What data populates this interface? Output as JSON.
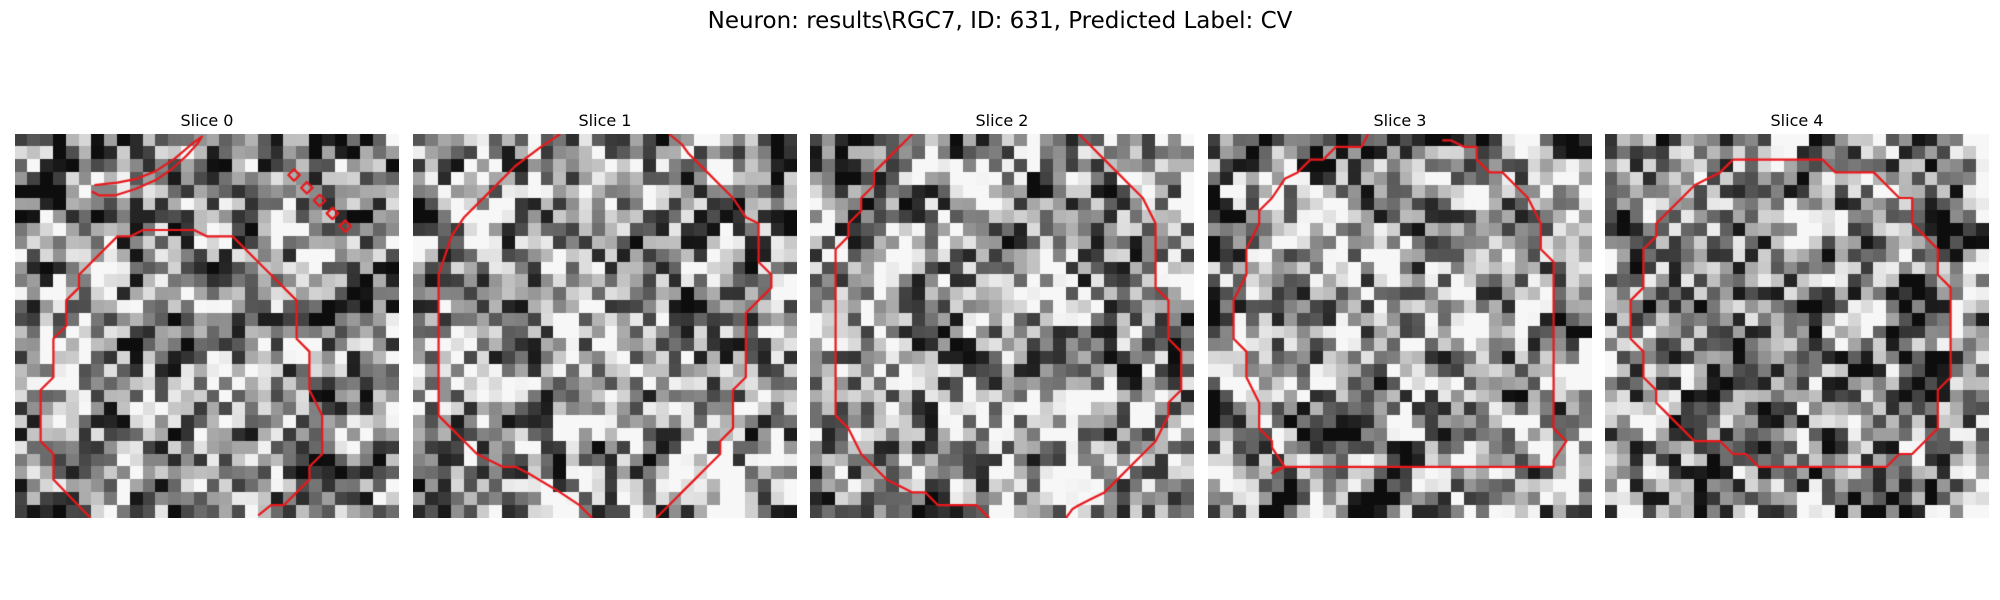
{
  "figure": {
    "title": "Neuron: results\\RGC7, ID: 631, Predicted Label: CV"
  },
  "slices": [
    {
      "title": "Slice 0",
      "seed": 11,
      "brightness": 0.52,
      "contours": [
        [
          [
            5.9,
            30
          ],
          [
            3.0,
            27
          ],
          [
            3.0,
            25
          ],
          [
            2.0,
            24
          ],
          [
            2.0,
            20
          ],
          [
            3.0,
            19
          ],
          [
            3.0,
            16
          ],
          [
            4.0,
            15
          ],
          [
            4.0,
            13
          ],
          [
            5.0,
            12
          ],
          [
            5.0,
            11
          ],
          [
            8.0,
            8
          ],
          [
            9.0,
            8
          ],
          [
            10,
            7.5
          ],
          [
            14,
            7.5
          ],
          [
            15,
            8
          ],
          [
            17,
            8
          ],
          [
            19,
            10
          ],
          [
            20,
            11
          ],
          [
            21,
            12
          ],
          [
            22,
            13
          ],
          [
            22,
            16
          ],
          [
            23,
            17
          ],
          [
            23,
            20
          ],
          [
            23.5,
            21
          ],
          [
            24,
            22
          ],
          [
            24,
            25
          ],
          [
            23,
            26
          ],
          [
            23,
            27
          ],
          [
            22,
            28
          ],
          [
            21,
            29
          ],
          [
            20,
            29
          ],
          [
            19,
            29.8
          ]
        ],
        [
          [
            6.2,
            4.0
          ],
          [
            8.0,
            3.8
          ],
          [
            9.5,
            3.5
          ],
          [
            11,
            2.9
          ],
          [
            12.5,
            1.9
          ],
          [
            13.8,
            0.8
          ],
          [
            14.6,
            0.2
          ],
          [
            14.3,
            0.7
          ],
          [
            13.4,
            1.7
          ],
          [
            12.3,
            2.7
          ],
          [
            11.0,
            3.6
          ],
          [
            9.4,
            4.3
          ],
          [
            7.8,
            4.8
          ],
          [
            6.6,
            4.8
          ],
          [
            6.0,
            4.5
          ]
        ]
      ],
      "diamonds": [
        [
          21.8,
          3.2
        ],
        [
          22.8,
          4.2
        ],
        [
          23.8,
          5.2
        ],
        [
          24.8,
          6.2
        ],
        [
          25.8,
          7.2
        ]
      ]
    },
    {
      "title": "Slice 1",
      "seed": 23,
      "brightness": 0.6,
      "contours": [
        [
          [
            11.5,
            0
          ],
          [
            10.0,
            1.0
          ],
          [
            8.0,
            2.5
          ],
          [
            6.0,
            4.5
          ],
          [
            4.0,
            6.5
          ],
          [
            3.0,
            8
          ],
          [
            2.5,
            9.5
          ],
          [
            2.0,
            11
          ],
          [
            2.0,
            22
          ],
          [
            3.0,
            23
          ],
          [
            4.0,
            24
          ],
          [
            5.0,
            25
          ],
          [
            6.0,
            25.5
          ],
          [
            7.0,
            26
          ],
          [
            8.0,
            26
          ],
          [
            9.0,
            26.5
          ],
          [
            11.5,
            28
          ],
          [
            13.0,
            29
          ],
          [
            14.0,
            30
          ]
        ],
        [
          [
            20.0,
            0
          ],
          [
            21.0,
            0.8
          ],
          [
            21.5,
            1.5
          ],
          [
            22,
            2.0
          ],
          [
            23,
            3.0
          ],
          [
            24,
            4.0
          ],
          [
            25,
            5.0
          ],
          [
            26,
            6.5
          ],
          [
            27,
            7.0
          ],
          [
            27,
            10
          ],
          [
            28,
            11
          ],
          [
            28,
            12
          ],
          [
            27,
            13
          ],
          [
            26,
            14
          ],
          [
            26,
            19
          ],
          [
            25,
            20
          ],
          [
            25,
            23
          ],
          [
            24,
            24
          ],
          [
            24,
            25
          ],
          [
            23,
            26
          ],
          [
            22,
            27
          ],
          [
            21,
            28
          ],
          [
            20,
            29
          ],
          [
            19,
            30
          ]
        ]
      ],
      "diamonds": []
    },
    {
      "title": "Slice 2",
      "seed": 37,
      "brightness": 0.58,
      "contours": [
        [
          [
            8,
            0
          ],
          [
            7,
            1
          ],
          [
            6,
            2
          ],
          [
            5,
            3
          ],
          [
            5,
            4
          ],
          [
            4,
            5
          ],
          [
            4,
            6
          ],
          [
            3,
            7
          ],
          [
            3,
            8
          ],
          [
            2,
            9
          ],
          [
            2,
            10
          ],
          [
            2,
            22
          ],
          [
            3,
            23
          ],
          [
            4,
            25
          ],
          [
            5,
            26
          ],
          [
            6,
            27
          ],
          [
            7,
            27.5
          ],
          [
            8,
            28
          ],
          [
            9,
            28
          ],
          [
            10,
            29
          ],
          [
            13,
            29
          ],
          [
            13.5,
            29.5
          ],
          [
            14,
            30
          ]
        ],
        [
          [
            21,
            0
          ],
          [
            22,
            1
          ],
          [
            23,
            2
          ],
          [
            24,
            3
          ],
          [
            25,
            4
          ],
          [
            26,
            5
          ],
          [
            27,
            7
          ],
          [
            27,
            12
          ],
          [
            28,
            13
          ],
          [
            28,
            16
          ],
          [
            29,
            17
          ],
          [
            29,
            20
          ],
          [
            28,
            21
          ],
          [
            28,
            22
          ],
          [
            27,
            24
          ],
          [
            26,
            25
          ],
          [
            25,
            26
          ],
          [
            24,
            27
          ],
          [
            23,
            28
          ],
          [
            22,
            28.5
          ],
          [
            21,
            29
          ],
          [
            20.5,
            29.3
          ],
          [
            20,
            30
          ]
        ]
      ],
      "diamonds": []
    },
    {
      "title": "Slice 3",
      "seed": 49,
      "brightness": 0.55,
      "contours": [
        [
          [
            12.5,
            0
          ],
          [
            12,
            1
          ],
          [
            10,
            1
          ],
          [
            9,
            2
          ],
          [
            8,
            2
          ],
          [
            7,
            3
          ],
          [
            6,
            3.5
          ],
          [
            5,
            5
          ],
          [
            4,
            6
          ],
          [
            4,
            7
          ],
          [
            3,
            9
          ],
          [
            3,
            11
          ],
          [
            2,
            13
          ],
          [
            2,
            16
          ],
          [
            3,
            17
          ],
          [
            3,
            19
          ],
          [
            4,
            21
          ],
          [
            4,
            23
          ],
          [
            5,
            24
          ],
          [
            5,
            24.5
          ],
          [
            6,
            26
          ],
          [
            5,
            26.5
          ],
          [
            5.3,
            26.2
          ],
          [
            6.0,
            26
          ],
          [
            27,
            26
          ],
          [
            27,
            25.5
          ],
          [
            28,
            24
          ],
          [
            27,
            23
          ],
          [
            27,
            10
          ],
          [
            26,
            9
          ],
          [
            26,
            7
          ],
          [
            25,
            5
          ],
          [
            24,
            4
          ],
          [
            23,
            3
          ],
          [
            22,
            3
          ],
          [
            21,
            2
          ],
          [
            21,
            1
          ],
          [
            20,
            1
          ],
          [
            19,
            0.5
          ],
          [
            18.3,
            0.5
          ]
        ]
      ],
      "diamonds": []
    },
    {
      "title": "Slice 4",
      "seed": 61,
      "brightness": 0.5,
      "contours": [
        [
          [
            10,
            2
          ],
          [
            9,
            3
          ],
          [
            8,
            3.5
          ],
          [
            7,
            4
          ],
          [
            6,
            5
          ],
          [
            5,
            6
          ],
          [
            4,
            7
          ],
          [
            4,
            8
          ],
          [
            3,
            9
          ],
          [
            3,
            12
          ],
          [
            2,
            13
          ],
          [
            2,
            16
          ],
          [
            3,
            17
          ],
          [
            3,
            19
          ],
          [
            4,
            20
          ],
          [
            4,
            21
          ],
          [
            5,
            22
          ],
          [
            6,
            23
          ],
          [
            7,
            24
          ],
          [
            8,
            24
          ],
          [
            9,
            24
          ],
          [
            10,
            25
          ],
          [
            11,
            25
          ],
          [
            12,
            26
          ],
          [
            22,
            26
          ],
          [
            23,
            25
          ],
          [
            24,
            25
          ],
          [
            25,
            24
          ],
          [
            26,
            23
          ],
          [
            26,
            21
          ],
          [
            26,
            20
          ],
          [
            27,
            19
          ],
          [
            27,
            12
          ],
          [
            26,
            11
          ],
          [
            26,
            9
          ],
          [
            25,
            8
          ],
          [
            24,
            7
          ],
          [
            24,
            5
          ],
          [
            23,
            5
          ],
          [
            22,
            4
          ],
          [
            21,
            3
          ],
          [
            18,
            3
          ],
          [
            17,
            2
          ],
          [
            10,
            2
          ]
        ]
      ],
      "diamonds": []
    }
  ],
  "colors": {
    "contour": "#e8191c",
    "background": "#ffffff"
  }
}
